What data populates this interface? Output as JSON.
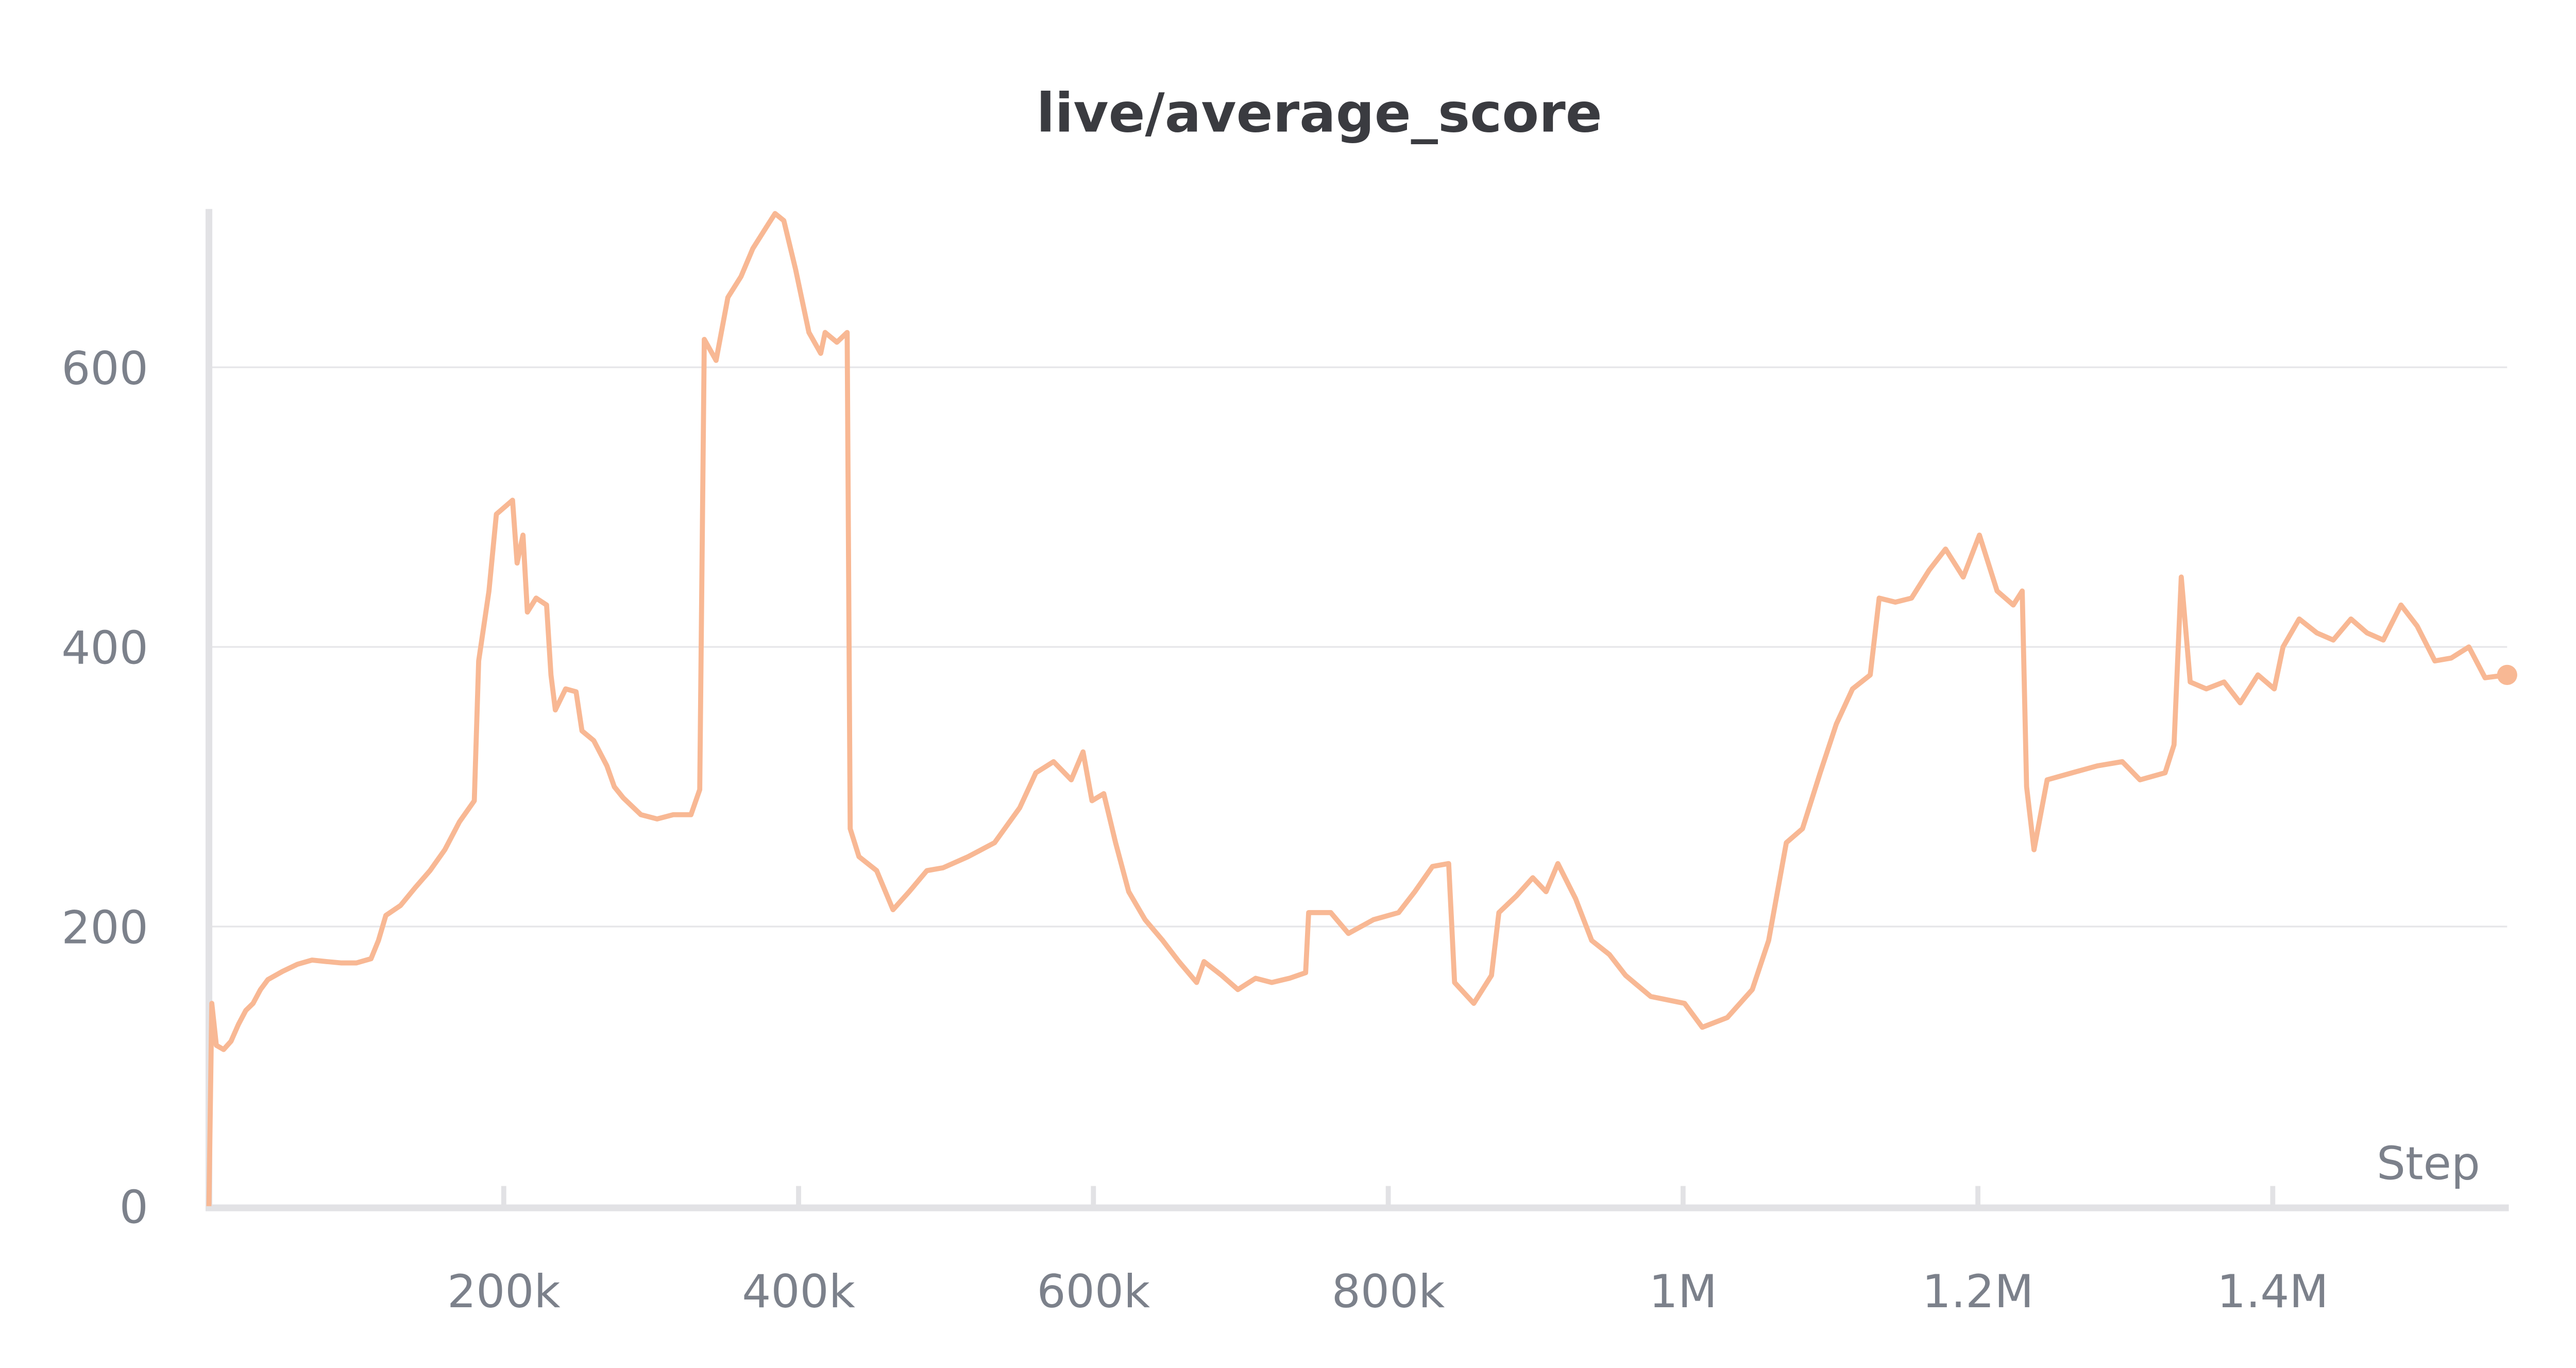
{
  "chart_data": {
    "type": "line",
    "title": "live/average_score",
    "xlabel": "Step",
    "ylabel": "",
    "xlim": [
      0,
      1559000
    ],
    "ylim": [
      0,
      712
    ],
    "grid": true,
    "x_ticks": [
      {
        "value": 200000,
        "label": "200k"
      },
      {
        "value": 400000,
        "label": "400k"
      },
      {
        "value": 600000,
        "label": "600k"
      },
      {
        "value": 800000,
        "label": "800k"
      },
      {
        "value": 1000000,
        "label": "1M"
      },
      {
        "value": 1200000,
        "label": "1.2M"
      },
      {
        "value": 1400000,
        "label": "1.4M"
      }
    ],
    "y_ticks": [
      {
        "value": 0,
        "label": "0"
      },
      {
        "value": 200,
        "label": "200"
      },
      {
        "value": 400,
        "label": "400"
      },
      {
        "value": 600,
        "label": "600"
      }
    ],
    "series_color": "#f8b894",
    "series": [
      {
        "x": [
          0,
          2000,
          5000,
          10000,
          15000,
          20000,
          25000,
          30000,
          35000,
          40000,
          50000,
          60000,
          70000,
          80000,
          90000,
          100000,
          110000,
          115000,
          120000,
          130000,
          140000,
          150000,
          160000,
          170000,
          180000,
          183000,
          190000,
          195000,
          206000,
          209000,
          213000,
          216000,
          222000,
          229000,
          232000,
          235000,
          242000,
          249000,
          253000,
          261000,
          270000,
          275000,
          281000,
          293000,
          304000,
          315000,
          327000,
          333000,
          336000,
          344000,
          352000,
          361000,
          369000,
          378000,
          384000,
          390000,
          398000,
          407000,
          415000,
          418000,
          426000,
          433000,
          435000,
          441000,
          453000,
          464000,
          475000,
          487000,
          498000,
          515000,
          533000,
          550000,
          561000,
          573000,
          585000,
          593000,
          599000,
          607000,
          615000,
          624000,
          635000,
          647000,
          658000,
          670000,
          675000,
          687000,
          698000,
          710000,
          721000,
          733000,
          744000,
          746000,
          761000,
          773000,
          790000,
          807000,
          818000,
          830000,
          841000,
          845000,
          858000,
          870000,
          875000,
          887000,
          898000,
          907000,
          915000,
          927000,
          938000,
          950000,
          961000,
          978000,
          1001000,
          1013000,
          1030000,
          1047000,
          1058000,
          1070000,
          1081000,
          1093000,
          1104000,
          1115000,
          1127000,
          1133000,
          1144000,
          1155000,
          1167000,
          1178000,
          1190000,
          1201000,
          1213000,
          1224000,
          1230000,
          1233000,
          1238000,
          1247000,
          1264000,
          1281000,
          1298000,
          1310000,
          1327000,
          1333000,
          1338000,
          1344000,
          1355000,
          1367000,
          1378000,
          1390000,
          1401000,
          1407000,
          1418000,
          1430000,
          1441000,
          1453000,
          1464000,
          1475000,
          1487000,
          1498000,
          1510000,
          1521000,
          1533000,
          1544000,
          1559000
        ],
        "y": [
          0,
          145,
          115,
          112,
          118,
          130,
          140,
          145,
          155,
          162,
          168,
          173,
          176,
          175,
          174,
          174,
          177,
          190,
          208,
          215,
          228,
          240,
          255,
          275,
          290,
          390,
          440,
          495,
          505,
          460,
          480,
          425,
          435,
          430,
          380,
          355,
          370,
          368,
          340,
          333,
          315,
          300,
          292,
          280,
          277,
          280,
          280,
          298,
          620,
          605,
          650,
          665,
          685,
          700,
          710,
          705,
          670,
          625,
          610,
          625,
          618,
          625,
          270,
          250,
          240,
          212,
          225,
          240,
          242,
          250,
          260,
          285,
          310,
          318,
          305,
          325,
          290,
          295,
          260,
          225,
          205,
          190,
          175,
          160,
          175,
          165,
          155,
          163,
          160,
          163,
          167,
          210,
          210,
          195,
          205,
          210,
          225,
          243,
          245,
          160,
          145,
          165,
          210,
          222,
          235,
          225,
          245,
          220,
          190,
          180,
          165,
          150,
          145,
          128,
          135,
          155,
          190,
          260,
          270,
          310,
          345,
          370,
          380,
          435,
          432,
          435,
          455,
          470,
          450,
          480,
          440,
          430,
          440,
          300,
          255,
          305,
          310,
          315,
          318,
          305,
          310,
          330,
          450,
          375,
          370,
          375,
          360,
          380,
          370,
          400,
          420,
          410,
          405,
          420,
          410,
          405,
          430,
          415,
          390,
          392,
          400,
          378,
          380
        ]
      }
    ]
  }
}
